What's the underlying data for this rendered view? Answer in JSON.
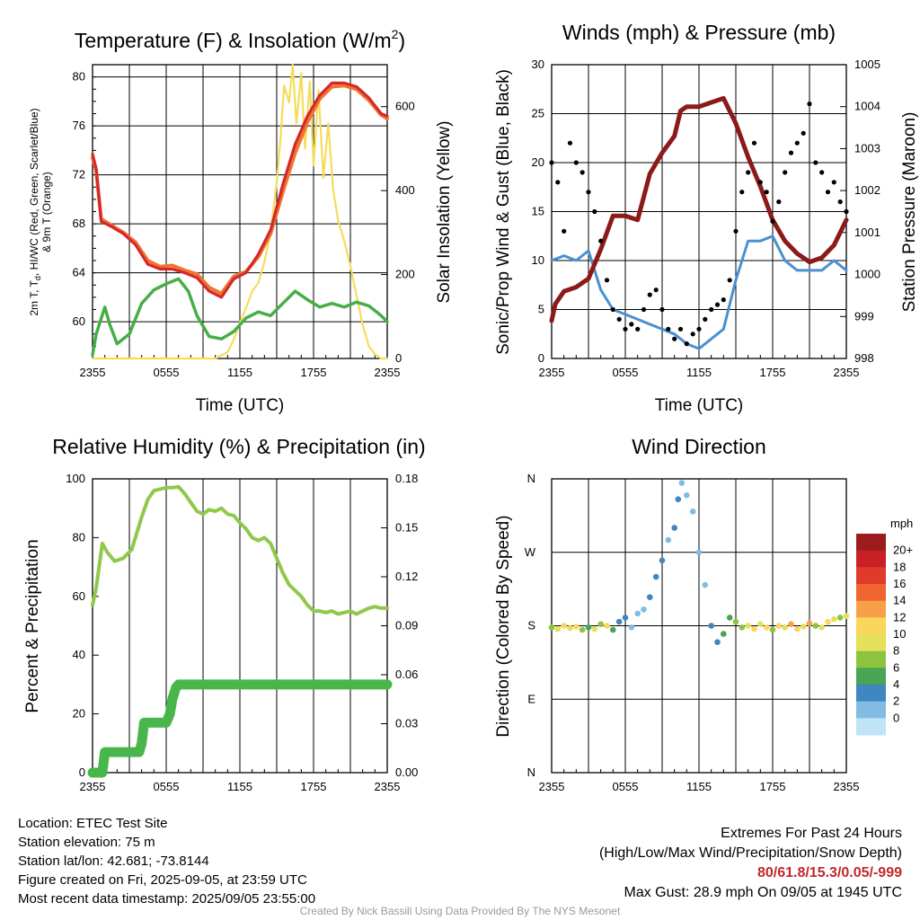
{
  "chart_data": [
    {
      "type": "line",
      "title": "Temperature (F) & Insolation (W/m²)",
      "title_prefix": "Temperature (F) & Insolation (W/m",
      "title_sup": "2",
      "title_suffix": ")",
      "xlabel": "Time (UTC)",
      "ylabel_left_line1": "2m T, T",
      "ylabel_left_sub": "d",
      "ylabel_left_line1_rest": ", HI/WC (Red, Green, Scarlet/Blue)",
      "ylabel_left_line2": "& 9m T (Orange)",
      "ylabel_right": "Solar Insolation (Yellow)",
      "x_ticks": [
        "2355",
        "0555",
        "1155",
        "1755",
        "2355"
      ],
      "x_range_hours": [
        0,
        24
      ],
      "y_left_ticks": [
        "60",
        "64",
        "68",
        "72",
        "76",
        "80"
      ],
      "ylim_left": [
        57,
        81
      ],
      "y_right_ticks": [
        "0",
        "200",
        "400",
        "600"
      ],
      "ylim_right": [
        0,
        700
      ],
      "series": [
        {
          "color": "#d4292c",
          "x": [
            0,
            0.3,
            0.7,
            1.5,
            2.5,
            3.5,
            4.5,
            5.5,
            6.5,
            7.5,
            8.5,
            9.5,
            10.5,
            11.5,
            12.5,
            13.5,
            14.5,
            15.5,
            16.5,
            17.5,
            18.5,
            19.5,
            20.5,
            21.5,
            22.5,
            23.5,
            24
          ],
          "values": [
            73.7,
            72.5,
            68.2,
            67.8,
            67.2,
            66.3,
            64.7,
            64.3,
            64.3,
            64,
            63.6,
            62.5,
            62,
            63.5,
            64,
            65.5,
            67.5,
            71.2,
            74.5,
            76.8,
            78.5,
            79.5,
            79.5,
            79.2,
            78.3,
            77,
            76.8
          ]
        },
        {
          "color": "#f0752f",
          "x": [
            0,
            0.3,
            0.7,
            1.5,
            2.5,
            3.5,
            4.5,
            5.5,
            6.5,
            7.5,
            8.5,
            9.5,
            10.5,
            11.5,
            12.5,
            13.5,
            14.5,
            15.5,
            16.5,
            17.5,
            18.5,
            19.5,
            20.5,
            21.5,
            22.5,
            23.5,
            24
          ],
          "values": [
            73.4,
            72.3,
            68.4,
            67.9,
            67.3,
            66.5,
            65,
            64.5,
            64.6,
            64.2,
            63.9,
            62.8,
            62.3,
            63.7,
            64.1,
            65.3,
            67.2,
            70.6,
            73.8,
            76.3,
            78.2,
            79.2,
            79.3,
            79,
            78.1,
            76.9,
            76.6
          ]
        },
        {
          "color": "#48ad48",
          "x": [
            0,
            0.3,
            1,
            1.4,
            2,
            3,
            4,
            5,
            6,
            7,
            7.8,
            8.5,
            9.5,
            10.5,
            11.5,
            12.5,
            13.5,
            14.5,
            15.5,
            16.5,
            17.5,
            18.5,
            19.5,
            20.5,
            21.5,
            22.5,
            23.5,
            24
          ],
          "values": [
            57.3,
            59,
            61.2,
            59.8,
            58.2,
            59,
            61.5,
            62.6,
            63.1,
            63.5,
            62.5,
            60.5,
            58.8,
            58.6,
            59.2,
            60.3,
            60.8,
            60.5,
            61.5,
            62.5,
            61.8,
            61.2,
            61.5,
            61.2,
            61.6,
            61.3,
            60.5,
            60
          ]
        },
        {
          "color": "#f5dc5c",
          "x": [
            0,
            9,
            10,
            11,
            11.5,
            12,
            12.5,
            13,
            13.5,
            14,
            14.5,
            15,
            15.3,
            15.6,
            16,
            16.3,
            16.6,
            17,
            17.3,
            17.7,
            18,
            18.4,
            18.8,
            19.2,
            19.6,
            20,
            20.5,
            21,
            21.5,
            22,
            22.5,
            23,
            23.5,
            24
          ],
          "values": [
            0,
            0,
            0,
            15,
            45,
            85,
            120,
            160,
            180,
            230,
            300,
            420,
            520,
            650,
            610,
            700,
            560,
            680,
            500,
            660,
            460,
            640,
            430,
            560,
            400,
            330,
            280,
            220,
            150,
            80,
            30,
            10,
            0,
            0
          ]
        }
      ]
    },
    {
      "type": "scatter",
      "title": "Winds (mph) & Pressure (mb)",
      "xlabel": "Time (UTC)",
      "ylabel_left": "Sonic/Prop Wind & Gust (Blue, Black)",
      "ylabel_right": "Station Pressure (Maroon)",
      "x_ticks": [
        "2355",
        "0555",
        "1155",
        "1755",
        "2355"
      ],
      "x_range_hours": [
        0,
        24
      ],
      "y_left_ticks": [
        "0",
        "5",
        "10",
        "15",
        "20",
        "25",
        "30"
      ],
      "ylim_left": [
        0,
        30
      ],
      "y_right_ticks": [
        "998",
        "999",
        "1000",
        "1001",
        "1002",
        "1003",
        "1004",
        "1005"
      ],
      "ylim_right": [
        998,
        1005
      ],
      "series": [
        {
          "color": "#4a90d0",
          "x": [
            0,
            1,
            2,
            3,
            4,
            5,
            6,
            7,
            8,
            9,
            10,
            11,
            12,
            13,
            14,
            15,
            16,
            17,
            18,
            19,
            20,
            21,
            22,
            23,
            24
          ],
          "values": [
            10,
            10.5,
            10,
            11,
            7,
            5,
            4.5,
            4,
            3.5,
            3,
            2.5,
            1.5,
            1,
            2,
            3,
            8,
            12,
            12,
            12.5,
            10,
            9,
            9,
            9,
            10,
            9
          ]
        },
        {
          "color": "#8b1a1a",
          "x": [
            0,
            0.3,
            1,
            2,
            3,
            4,
            5,
            6,
            7,
            8,
            9,
            10,
            10.5,
            11,
            12,
            13,
            14,
            15,
            16,
            17,
            18,
            19,
            20,
            21,
            22,
            23,
            24
          ],
          "values": [
            998.9,
            999.3,
            999.6,
            999.7,
            999.9,
            1000.6,
            1001.4,
            1001.4,
            1001.3,
            1002.4,
            1002.9,
            1003.3,
            1003.9,
            1004.0,
            1004.0,
            1004.1,
            1004.2,
            1003.6,
            1002.8,
            1002.1,
            1001.3,
            1000.8,
            1000.5,
            1000.3,
            1000.4,
            1000.7,
            1001.3
          ]
        },
        {
          "color": "#000000",
          "x": [
            0,
            0.5,
            1,
            1.5,
            2,
            2.5,
            3,
            3.5,
            4,
            4.5,
            5,
            5.5,
            6,
            6.5,
            7,
            7.5,
            8,
            8.5,
            9,
            9.5,
            10,
            10.5,
            11,
            11.5,
            12,
            12.5,
            13,
            13.5,
            14,
            14.5,
            15,
            15.5,
            16,
            16.5,
            17,
            17.5,
            18,
            18.5,
            19,
            19.5,
            20,
            20.5,
            21,
            21.5,
            22,
            22.5,
            23,
            23.5,
            24
          ],
          "values": [
            20,
            18,
            13,
            22,
            20,
            19,
            17,
            15,
            12,
            8,
            5,
            4,
            3,
            3.5,
            3,
            5,
            6.5,
            7,
            5,
            3,
            2,
            3,
            1.5,
            2.5,
            3,
            4,
            5,
            5.5,
            6,
            8,
            13,
            17,
            19,
            22,
            18,
            17,
            14,
            16,
            19,
            21,
            22,
            23,
            26,
            20,
            19,
            17,
            18,
            16,
            15
          ]
        }
      ]
    },
    {
      "type": "line",
      "title": "Relative Humidity (%) & Precipitation (in)",
      "ylabel_left": "Percent & Precipitation",
      "x_ticks": [
        "2355",
        "0555",
        "1155",
        "1755",
        "2355"
      ],
      "x_range_hours": [
        0,
        24
      ],
      "y_left_ticks": [
        "0",
        "20",
        "40",
        "60",
        "80",
        "100"
      ],
      "ylim_left": [
        0,
        100
      ],
      "y_right_ticks": [
        "0.00",
        "0.03",
        "0.06",
        "0.09",
        "0.12",
        "0.15",
        "0.18"
      ],
      "ylim_right": [
        0,
        0.18
      ],
      "series": [
        {
          "color": "#8fc94a",
          "x": [
            0,
            0.3,
            0.8,
            1.2,
            1.8,
            2.5,
            3.2,
            4,
            4.5,
            5,
            5.5,
            6,
            6.5,
            7,
            7.5,
            8,
            8.5,
            9,
            9.5,
            10,
            10.5,
            11,
            11.5,
            12,
            12.5,
            13,
            13.5,
            14,
            14.5,
            15,
            15.5,
            16,
            16.5,
            17,
            17.5,
            18,
            18.5,
            19,
            19.5,
            20,
            20.5,
            21,
            21.5,
            22,
            22.5,
            23,
            23.5,
            24
          ],
          "values": [
            57,
            63,
            78,
            75,
            72,
            73,
            76,
            87,
            93,
            96,
            96.5,
            97,
            97,
            97.3,
            95,
            92,
            89,
            88,
            89.5,
            89,
            90,
            88,
            87.5,
            85,
            83,
            80,
            79,
            80,
            78,
            73,
            68,
            64,
            62,
            60,
            57,
            55,
            55,
            54.5,
            55,
            54,
            54.5,
            55,
            54,
            55,
            56,
            56.5,
            56,
            56
          ]
        },
        {
          "color": "#48b64a",
          "x": [
            0,
            0.8,
            1,
            1.5,
            2,
            2.5,
            3,
            3.5,
            3.8,
            4,
            4.2,
            4.5,
            5,
            5.5,
            6,
            6.3,
            6.5,
            6.8,
            7,
            7.2,
            7.5,
            8,
            10,
            12,
            14,
            16,
            18,
            20,
            22,
            24
          ],
          "values": [
            0,
            0,
            7,
            7,
            7,
            7,
            7,
            7,
            7,
            10,
            17,
            17,
            17,
            17,
            17,
            20,
            25,
            29,
            30,
            30,
            30,
            30,
            30,
            30,
            30,
            30,
            30,
            30,
            30,
            30
          ]
        }
      ]
    },
    {
      "type": "scatter",
      "title": "Wind Direction",
      "ylabel_left": "Direction (Colored By Speed)",
      "x_ticks": [
        "2355",
        "0555",
        "1155",
        "1755",
        "2355"
      ],
      "x_range_hours": [
        0,
        24
      ],
      "y_ticks": [
        "N",
        "E",
        "S",
        "W",
        "N"
      ],
      "ylim_deg": [
        0,
        360
      ],
      "legend_title": "mph",
      "legend_labels": [
        "20+",
        "18",
        "16",
        "14",
        "12",
        "10",
        "8",
        "6",
        "4",
        "2",
        "0"
      ],
      "legend_colors": [
        "#9a1c1c",
        "#c82025",
        "#e03a2c",
        "#f06630",
        "#f8a047",
        "#fbd55e",
        "#e3e05a",
        "#8cc43f",
        "#49a454",
        "#3f86c2",
        "#82bce4",
        "#bfe4f6"
      ],
      "x": [
        0,
        0.5,
        1,
        1.5,
        2,
        2.5,
        3,
        3.5,
        4,
        4.5,
        5,
        5.5,
        6,
        6.5,
        7,
        7.5,
        8,
        8.5,
        9,
        9.5,
        10,
        10.3,
        10.6,
        11,
        11.5,
        12,
        12.5,
        13,
        13.5,
        14,
        14.5,
        15,
        15.5,
        16,
        16.5,
        17,
        17.5,
        18,
        18.5,
        19,
        19.5,
        20,
        20.5,
        21,
        21.5,
        22,
        22.5,
        23,
        23.5,
        24
      ],
      "values": [
        178,
        176,
        180,
        177,
        179,
        175,
        178,
        176,
        182,
        180,
        175,
        185,
        190,
        178,
        195,
        200,
        215,
        240,
        260,
        285,
        300,
        335,
        355,
        340,
        320,
        270,
        230,
        180,
        160,
        170,
        190,
        185,
        178,
        180,
        176,
        182,
        178,
        175,
        180,
        178,
        182,
        176,
        179,
        183,
        180,
        178,
        185,
        188,
        190,
        192
      ],
      "speeds": [
        8,
        10,
        12,
        9,
        11,
        8,
        6,
        9,
        7,
        12,
        5,
        4,
        3,
        2,
        1,
        2,
        3,
        4,
        3,
        2,
        4,
        3,
        2,
        1,
        2,
        1,
        2,
        3,
        4,
        5,
        6,
        7,
        8,
        10,
        12,
        9,
        11,
        8,
        12,
        10,
        14,
        11,
        9,
        13,
        8,
        10,
        12,
        9,
        8,
        9
      ]
    }
  ],
  "station": {
    "location": "Location: ETEC Test Site",
    "elevation": "Station elevation: 75 m",
    "latlon": "Station lat/lon: 42.681; -73.8144",
    "created": "Figure created on Fri, 2025-09-05, at 23:59 UTC",
    "recent": "Most recent data timestamp: 2025/09/05 23:55:00"
  },
  "extremes": {
    "title": "Extremes For Past 24 Hours",
    "subtitle": "(High/Low/Max Wind/Precipitation/Snow Depth)",
    "values": "80/61.8/15.3/0.05/-999",
    "gust": "Max Gust: 28.9 mph On 09/05 at 1945 UTC"
  },
  "credit": "Created By Nick Bassill Using Data Provided By The NYS Mesonet"
}
